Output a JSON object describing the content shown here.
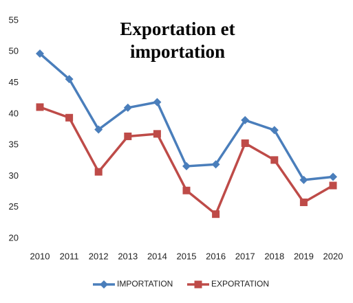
{
  "chart_data": {
    "type": "line",
    "title": "Exportation et importation",
    "categories": [
      "2010",
      "2011",
      "2012",
      "2013",
      "2014",
      "2015",
      "2016",
      "2017",
      "2018",
      "2019",
      "2020"
    ],
    "series": [
      {
        "name": "IMPORTATION",
        "color": "#4a7ebb",
        "marker": "diamond",
        "values": [
          49.7,
          45.6,
          37.5,
          41,
          41.9,
          31.6,
          31.9,
          39,
          37.4,
          29.4,
          29.9
        ]
      },
      {
        "name": "EXPORTATION",
        "color": "#be4b48",
        "marker": "square",
        "values": [
          41.1,
          39.4,
          30.7,
          36.4,
          36.8,
          27.7,
          23.9,
          35.3,
          32.6,
          25.8,
          28.5
        ]
      }
    ],
    "ylim": [
      20,
      55
    ],
    "yticks": [
      20,
      25,
      30,
      35,
      40,
      45,
      50,
      55
    ],
    "grid": false,
    "legend": "bottom"
  }
}
